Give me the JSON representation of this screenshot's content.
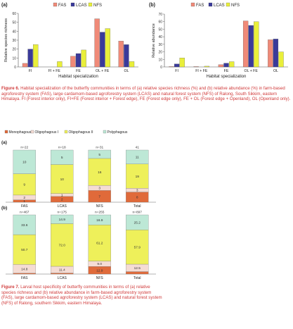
{
  "figure6": {
    "caption_label": "Figure 6.",
    "caption_text": "Habitat specialization of the butterfly communities in terms of (a) relative species richness (%) and (b) relative abundance (%) in farm-based agroforestry system (FAS), large cardamom-based agroforestry system (LCAS) and natural forest system (NFS) of Ralong, South Sikkim, eastern Himalaya. FI (Forest interior only), FI+FE (Forest interior + Forest edge), FE (Forest edge only), FE + OL (Forest edge + Openland), OL (Openland only).",
    "colors": {
      "FAS": "#f08a78",
      "LCAS": "#3a3a9a",
      "NFS": "#e9ef3a"
    }
  },
  "figure7": {
    "caption_label": "Figure 7.",
    "caption_text": "Larval host specificity of butterfly communities in terms of (a) relative species richness and (b) relative abundance in farm-based agroforestry system (FAS), large cardamom-based agroforestry system (LCAS) and natural forest system (NFS) of Ralong, southern Sikkim, eastern Himalaya.",
    "colors": {
      "Monophagous": "#e06a3a",
      "Oligophagous I": "#f5dcd4",
      "Oligophagous II": "#eef05a",
      "Polyphagous": "#bde8d6"
    }
  },
  "chart_data": [
    {
      "type": "bar",
      "panel": "(a)",
      "categories": [
        "FI",
        "FI + FE",
        "FE",
        "OL + FE",
        "OL"
      ],
      "series": [
        {
          "name": "FAS",
          "values": [
            4,
            0,
            12,
            54,
            29
          ]
        },
        {
          "name": "LCAS",
          "values": [
            20,
            0,
            15,
            39,
            25
          ]
        },
        {
          "name": "NFS",
          "values": [
            25,
            6,
            19,
            43,
            6
          ]
        }
      ],
      "xlabel": "Habitat specialization",
      "ylabel": "Relative species richness",
      "ylim": [
        0,
        60
      ],
      "yticks": [
        0,
        10,
        20,
        30,
        40,
        50,
        60
      ]
    },
    {
      "type": "bar",
      "panel": "(b)",
      "categories": [
        "FI",
        "FI + FE",
        "FE",
        "OL + FE",
        "OL"
      ],
      "series": [
        {
          "name": "FAS",
          "values": [
            0.5,
            0.5,
            3,
            61,
            36
          ]
        },
        {
          "name": "LCAS",
          "values": [
            4,
            0,
            5,
            55,
            37
          ]
        },
        {
          "name": "NFS",
          "values": [
            12,
            1,
            7,
            60,
            20
          ]
        }
      ],
      "xlabel": "Habitat specialization",
      "ylabel": "Relative abundance",
      "ylim": [
        0,
        70
      ],
      "yticks": [
        0,
        10,
        20,
        30,
        40,
        50,
        60,
        70
      ]
    },
    {
      "type": "bar",
      "stacked": true,
      "panel": "(a)",
      "categories": [
        "FAS",
        "LCAS",
        "NFS",
        "Total"
      ],
      "n_labels": [
        "n=22",
        "n=18",
        "n=31",
        "41"
      ],
      "series": [
        {
          "name": "Monophagous",
          "values": [
            1,
            2,
            7,
            8
          ],
          "labels": [
            "1",
            "2",
            "7",
            "8"
          ]
        },
        {
          "name": "Oligophagous I",
          "values": [
            2,
            1,
            3,
            3
          ],
          "labels": [
            "2",
            "1",
            "3",
            "3"
          ]
        },
        {
          "name": "Oligophagous II",
          "values": [
            9,
            10,
            16,
            19
          ],
          "labels": [
            "9",
            "10",
            "16",
            "19"
          ]
        },
        {
          "name": "Polyphagous",
          "values": [
            10,
            5,
            5,
            11
          ],
          "labels": [
            "10",
            "5",
            "5",
            "11"
          ]
        }
      ]
    },
    {
      "type": "bar",
      "stacked": true,
      "panel": "(b)",
      "categories": [
        "FAS",
        "LCAS",
        "NFS",
        "Total"
      ],
      "n_labels": [
        "n=467",
        "n=175",
        "n=255",
        "n=897"
      ],
      "series": [
        {
          "name": "Monophagous",
          "values": [
            1.5,
            1.7,
            12.9,
            4.1
          ],
          "labels": [
            "",
            "",
            "12.9",
            ""
          ]
        },
        {
          "name": "Oligophagous I",
          "values": [
            14.8,
            11.4,
            9.0,
            12.5
          ],
          "labels": [
            "14.8",
            "11.4",
            "9.0",
            "12.5"
          ]
        },
        {
          "name": "Oligophagous II",
          "values": [
            50.7,
            72.0,
            61.2,
            57.9
          ],
          "labels": [
            "50.7",
            "72.0",
            "61.2",
            "57.9"
          ]
        },
        {
          "name": "Polyphagous",
          "values": [
            33.6,
            14.9,
            16.9,
            25.2
          ],
          "labels": [
            "33.6",
            "14.9",
            "16.9",
            "25.2"
          ]
        }
      ]
    }
  ]
}
